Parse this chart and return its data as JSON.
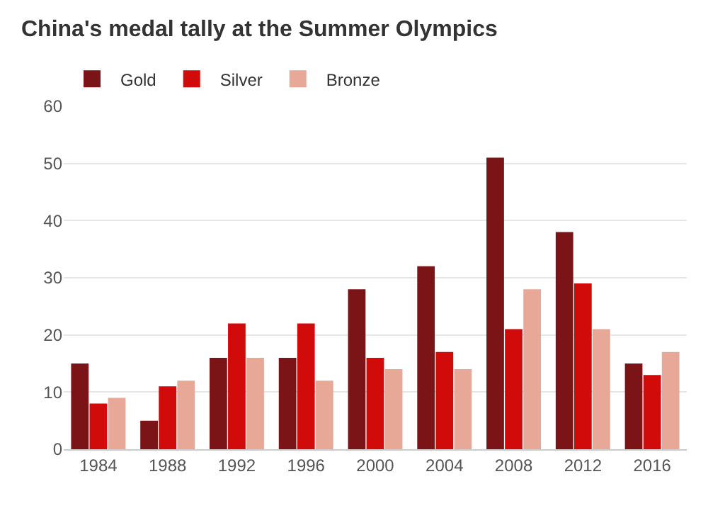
{
  "chart_data": {
    "type": "bar",
    "title": "China's medal tally at the Summer Olympics",
    "categories": [
      "1984",
      "1988",
      "1992",
      "1996",
      "2000",
      "2004",
      "2008",
      "2012",
      "2016"
    ],
    "series": [
      {
        "name": "Gold",
        "color": "#7b1416",
        "values": [
          15,
          5,
          16,
          16,
          28,
          32,
          51,
          38,
          15
        ]
      },
      {
        "name": "Silver",
        "color": "#d10a0a",
        "values": [
          8,
          11,
          22,
          22,
          16,
          17,
          21,
          29,
          13
        ]
      },
      {
        "name": "Bronze",
        "color": "#e8a898",
        "values": [
          9,
          12,
          16,
          12,
          14,
          14,
          28,
          21,
          17
        ]
      }
    ],
    "ylim": [
      0,
      60
    ],
    "yticks": [
      0,
      10,
      20,
      30,
      40,
      50,
      60
    ],
    "grid": "y",
    "legend": "top left"
  }
}
